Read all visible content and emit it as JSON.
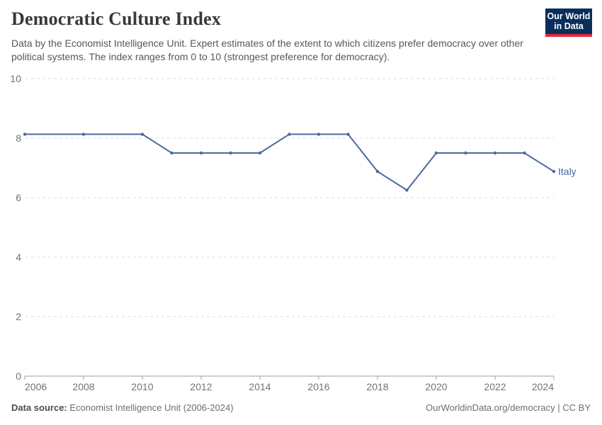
{
  "header": {
    "title": "Democratic Culture Index",
    "subtitle": "Data by the Economist Intelligence Unit. Expert estimates of the extent to which citizens prefer democracy over other political systems. The index ranges from 0 to 10 (strongest preference for democracy).",
    "logo": {
      "line1": "Our World",
      "line2": "in Data"
    }
  },
  "chart_data": {
    "type": "line",
    "title": "Democratic Culture Index",
    "xlabel": "",
    "ylabel": "",
    "xlim": [
      2006,
      2024
    ],
    "ylim": [
      0,
      10
    ],
    "x_ticks": [
      2006,
      2008,
      2010,
      2012,
      2014,
      2016,
      2018,
      2020,
      2022,
      2024
    ],
    "y_ticks": [
      0,
      2,
      4,
      6,
      8,
      10
    ],
    "grid": "horizontal-dashed",
    "legend_position": "end-of-line-label",
    "series": [
      {
        "name": "Italy",
        "color": "#4c6a9c",
        "x": [
          2006,
          2008,
          2010,
          2011,
          2012,
          2013,
          2014,
          2015,
          2016,
          2017,
          2018,
          2019,
          2020,
          2021,
          2022,
          2023,
          2024
        ],
        "values": [
          8.13,
          8.13,
          8.13,
          7.5,
          7.5,
          7.5,
          7.5,
          8.13,
          8.13,
          8.13,
          6.88,
          6.25,
          7.5,
          7.5,
          7.5,
          7.5,
          6.88
        ]
      }
    ]
  },
  "colors": {
    "accent_line": "#4c6a9c",
    "gridline": "#dedede",
    "axis": "#a1a1a1",
    "tick_label": "#737373",
    "logo_bg": "#0a2e5c",
    "logo_accent": "#e5273d"
  },
  "footer": {
    "datasource_label": "Data source:",
    "datasource_value": " Economist Intelligence Unit (2006-2024)",
    "credit": "OurWorldinData.org/democracy | CC BY"
  }
}
